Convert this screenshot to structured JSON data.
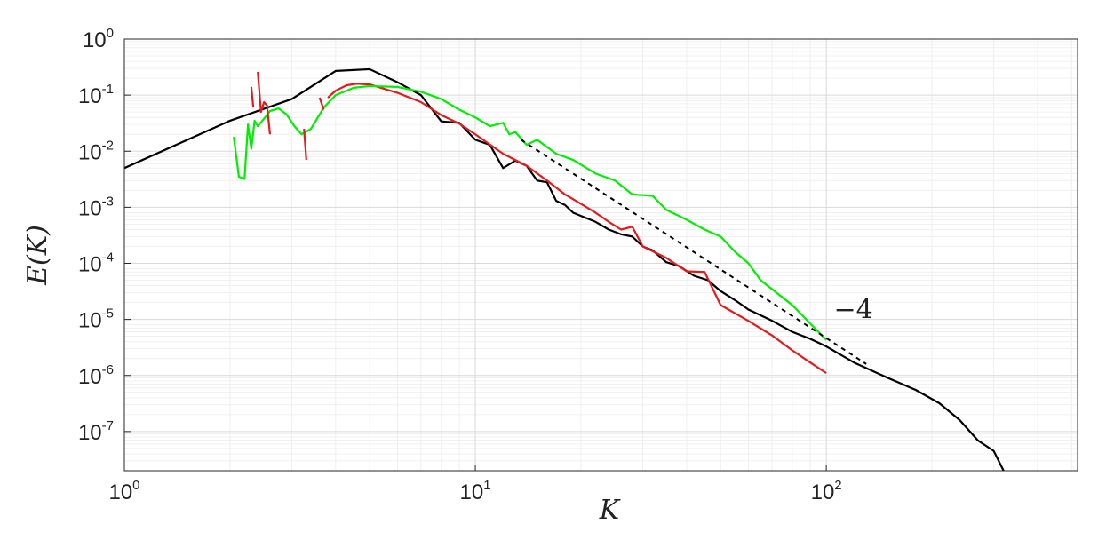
{
  "chart_data": {
    "type": "line",
    "xlabel": "K",
    "ylabel": "E(K)",
    "x_scale": "log",
    "y_scale": "log",
    "xlim": [
      1,
      520
    ],
    "ylim": [
      2e-08,
      1
    ],
    "grid": true,
    "x_ticks": [
      {
        "value": 1,
        "base": "10",
        "exp": "0"
      },
      {
        "value": 10,
        "base": "10",
        "exp": "1"
      },
      {
        "value": 100,
        "base": "10",
        "exp": "2"
      }
    ],
    "y_ticks": [
      {
        "value": 1,
        "base": "10",
        "exp": "0"
      },
      {
        "value": 0.1,
        "base": "10",
        "exp": "-1"
      },
      {
        "value": 0.01,
        "base": "10",
        "exp": "-2"
      },
      {
        "value": 0.001,
        "base": "10",
        "exp": "-3"
      },
      {
        "value": 0.0001,
        "base": "10",
        "exp": "-4"
      },
      {
        "value": 1e-05,
        "base": "10",
        "exp": "-5"
      },
      {
        "value": 1e-06,
        "base": "10",
        "exp": "-6"
      },
      {
        "value": 1e-07,
        "base": "10",
        "exp": "-7"
      }
    ],
    "annotations": [
      {
        "text": "−4",
        "x": 105,
        "y": 1.05e-05
      }
    ],
    "series": [
      {
        "color": "#000000",
        "style": "solid",
        "points": [
          [
            1,
            0.005
          ],
          [
            2,
            0.035
          ],
          [
            3,
            0.085
          ],
          [
            4,
            0.27
          ],
          [
            5,
            0.29
          ],
          [
            6,
            0.17
          ],
          [
            7,
            0.1
          ],
          [
            8,
            0.034
          ],
          [
            9,
            0.032
          ],
          [
            10,
            0.016
          ],
          [
            11,
            0.013
          ],
          [
            12,
            0.005
          ],
          [
            13,
            0.0068
          ],
          [
            14,
            0.0055
          ],
          [
            15,
            0.003
          ],
          [
            16,
            0.0028
          ],
          [
            17,
            0.0013
          ],
          [
            18,
            0.0011
          ],
          [
            19,
            0.0008
          ],
          [
            20,
            0.0007
          ],
          [
            22,
            0.00055
          ],
          [
            24,
            0.0004
          ],
          [
            26,
            0.00033
          ],
          [
            28,
            0.0003
          ],
          [
            30,
            0.0002
          ],
          [
            32,
            0.00017
          ],
          [
            35,
            0.000105
          ],
          [
            38,
            9e-05
          ],
          [
            42,
            6e-05
          ],
          [
            46,
            5e-05
          ],
          [
            50,
            3.2e-05
          ],
          [
            55,
            2.2e-05
          ],
          [
            60,
            1.5e-05
          ],
          [
            70,
            9.5e-06
          ],
          [
            80,
            6e-06
          ],
          [
            90,
            4.5e-06
          ],
          [
            100,
            3.3e-06
          ],
          [
            120,
            1.7e-06
          ],
          [
            150,
            9e-07
          ],
          [
            180,
            5.5e-07
          ],
          [
            210,
            3.2e-07
          ],
          [
            240,
            1.6e-07
          ],
          [
            270,
            7e-08
          ],
          [
            300,
            4.5e-08
          ],
          [
            320,
            2e-08
          ]
        ]
      },
      {
        "color": "#e41a1c",
        "style": "solid",
        "points": [
          [
            3.8,
            0.09
          ],
          [
            4.0,
            0.12
          ],
          [
            4.3,
            0.15
          ],
          [
            4.6,
            0.16
          ],
          [
            5,
            0.155
          ],
          [
            6,
            0.11
          ],
          [
            7,
            0.075
          ],
          [
            8,
            0.044
          ],
          [
            9,
            0.031
          ],
          [
            10,
            0.02
          ],
          [
            12,
            0.009
          ],
          [
            14,
            0.0055
          ],
          [
            16,
            0.003
          ],
          [
            18,
            0.0017
          ],
          [
            20,
            0.00115
          ],
          [
            22,
            0.0008
          ],
          [
            24,
            0.00055
          ],
          [
            26,
            0.0004
          ],
          [
            28,
            0.00045
          ],
          [
            30,
            0.0002
          ],
          [
            35,
            0.000125
          ],
          [
            40,
            7.2e-05
          ],
          [
            45,
            7e-05
          ],
          [
            50,
            1.8e-05
          ],
          [
            60,
            9.4e-06
          ],
          [
            70,
            5.2e-06
          ],
          [
            80,
            2.8e-06
          ],
          [
            90,
            1.7e-06
          ],
          [
            100,
            1.1e-06
          ]
        ]
      },
      {
        "color": "#00ee00",
        "style": "solid",
        "points": [
          [
            2.05,
            0.018
          ],
          [
            2.12,
            0.0035
          ],
          [
            2.2,
            0.0032
          ],
          [
            2.25,
            0.03
          ],
          [
            2.3,
            0.011
          ],
          [
            2.35,
            0.035
          ],
          [
            2.4,
            0.028
          ],
          [
            2.5,
            0.038
          ],
          [
            2.6,
            0.052
          ],
          [
            2.75,
            0.058
          ],
          [
            2.9,
            0.045
          ],
          [
            3.05,
            0.028
          ],
          [
            3.2,
            0.02
          ],
          [
            3.4,
            0.025
          ],
          [
            3.7,
            0.06
          ],
          [
            4,
            0.1
          ],
          [
            4.5,
            0.135
          ],
          [
            5,
            0.145
          ],
          [
            6,
            0.14
          ],
          [
            7,
            0.115
          ],
          [
            8,
            0.085
          ],
          [
            9,
            0.055
          ],
          [
            10,
            0.04
          ],
          [
            11,
            0.028
          ],
          [
            12,
            0.032
          ],
          [
            12.5,
            0.02
          ],
          [
            13,
            0.022
          ],
          [
            14,
            0.013
          ],
          [
            15,
            0.016
          ],
          [
            17,
            0.009
          ],
          [
            19,
            0.007
          ],
          [
            22,
            0.004
          ],
          [
            25,
            0.003
          ],
          [
            28,
            0.0017
          ],
          [
            32,
            0.0016
          ],
          [
            35,
            0.0009
          ],
          [
            40,
            0.0006
          ],
          [
            45,
            0.0004
          ],
          [
            50,
            0.0003
          ],
          [
            55,
            0.00016
          ],
          [
            60,
            0.0001
          ],
          [
            65,
            5e-05
          ],
          [
            80,
            1.8e-05
          ],
          [
            100,
            4.3e-06
          ]
        ]
      },
      {
        "color": "#e41a1c",
        "style": "solid",
        "points": [
          [
            2.3,
            0.14
          ],
          [
            2.33,
            0.06
          ]
        ]
      },
      {
        "color": "#e41a1c",
        "style": "solid",
        "points": [
          [
            2.4,
            0.26
          ],
          [
            2.45,
            0.05
          ],
          [
            2.5,
            0.075
          ],
          [
            2.55,
            0.065
          ],
          [
            2.6,
            0.02
          ]
        ]
      },
      {
        "color": "#e41a1c",
        "style": "solid",
        "points": [
          [
            3.25,
            0.025
          ],
          [
            3.3,
            0.007
          ]
        ]
      },
      {
        "color": "#e41a1c",
        "style": "solid",
        "points": [
          [
            3.6,
            0.09
          ],
          [
            3.7,
            0.055
          ]
        ]
      },
      {
        "color": "#000000",
        "style": "dashed",
        "points": [
          [
            13.5,
            0.016
          ],
          [
            130,
            1.6e-06
          ]
        ]
      }
    ]
  }
}
